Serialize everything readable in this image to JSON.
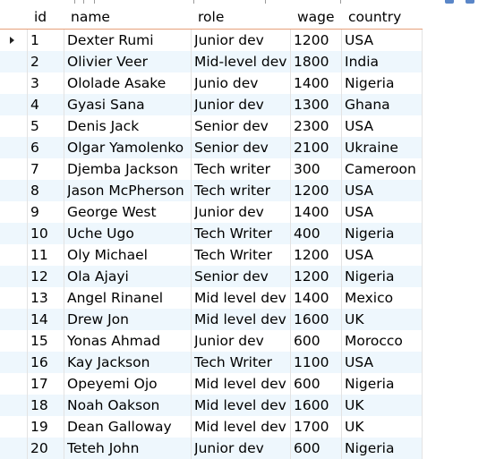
{
  "table": {
    "columns": [
      "id",
      "name",
      "role",
      "wage",
      "country"
    ],
    "rows": [
      [
        "1",
        "Dexter Rumi",
        "Junior dev",
        "1200",
        "USA"
      ],
      [
        "2",
        "Olivier Veer",
        "Mid-level dev",
        "1800",
        "India"
      ],
      [
        "3",
        "Ololade Asake",
        "Junio dev",
        "1400",
        "Nigeria"
      ],
      [
        "4",
        "Gyasi Sana",
        "Junior dev",
        "1300",
        "Ghana"
      ],
      [
        "5",
        "Denis Jack",
        "Senior dev",
        "2300",
        "USA"
      ],
      [
        "6",
        "Olgar Yamolenko",
        "Senior dev",
        "2100",
        "Ukraine"
      ],
      [
        "7",
        "Djemba Jackson",
        "Tech writer",
        "300",
        "Cameroon"
      ],
      [
        "8",
        "Jason McPherson",
        "Tech writer",
        "1200",
        "USA"
      ],
      [
        "9",
        "George West",
        "Junior dev",
        "1400",
        "USA"
      ],
      [
        "10",
        "Uche Ugo",
        "Tech Writer",
        "400",
        "Nigeria"
      ],
      [
        "11",
        "Oly Michael",
        "Tech Writer",
        "1200",
        "USA"
      ],
      [
        "12",
        "Ola Ajayi",
        "Senior dev",
        "1200",
        "Nigeria"
      ],
      [
        "13",
        "Angel Rinanel",
        "Mid level dev",
        "1400",
        "Mexico"
      ],
      [
        "14",
        "Drew Jon",
        "Mid level dev",
        "1600",
        "UK"
      ],
      [
        "15",
        "Yonas Ahmad",
        "Junior dev",
        "600",
        "Morocco"
      ],
      [
        "16",
        "Kay Jackson",
        "Tech Writer",
        "1100",
        "USA"
      ],
      [
        "17",
        "Opeyemi Ojo",
        "Mid level dev",
        "600",
        "Nigeria"
      ],
      [
        "18",
        "Noah Oakson",
        "Mid level dev",
        "1600",
        "UK"
      ],
      [
        "19",
        "Dean Galloway",
        "Mid level dev",
        "1700",
        "UK"
      ],
      [
        "20",
        "Teteh John",
        "Junior dev",
        "600",
        "Nigeria"
      ]
    ],
    "current_row_index": 0
  },
  "colors": {
    "alt_row": "#eef7fd",
    "header_border": "#e6a07a",
    "column_separator": "#e3e3e3"
  },
  "icons": [
    "current-row-indicator-icon",
    "toolbar-icon"
  ]
}
